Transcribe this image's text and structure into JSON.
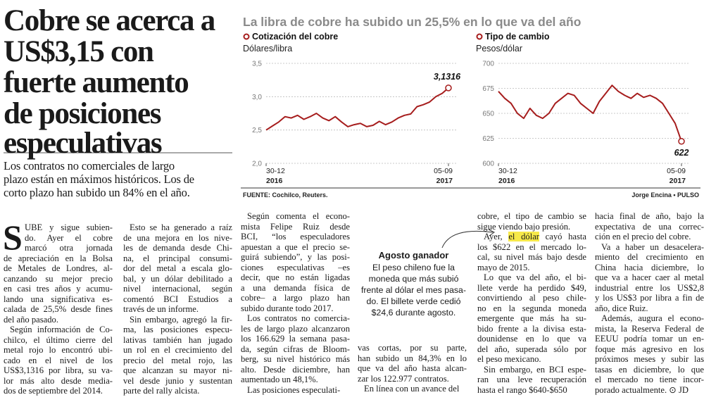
{
  "headline": {
    "lines": [
      "Cobre se acerca a",
      "US$3,15 con",
      "fuerte aumento",
      "de posiciones",
      "especulativas"
    ],
    "deck": [
      "Los contratos no comerciales de largo",
      "plazo están en máximos históricos. Los de",
      "corto plazo han subido un 84% en el año."
    ]
  },
  "infographic": {
    "title": "La libra de cobre ha subido un 25,5% en lo que va del año",
    "source": "FUENTE: Cochilco, Reuters.",
    "credit": "Jorge Encina • PULSO"
  },
  "chart_data": [
    {
      "type": "line",
      "title": "Cotización del cobre",
      "subtitle": "Dólares/libra",
      "color": "#a61d1d",
      "grid": true,
      "categories": [
        "30-12",
        null,
        null,
        null,
        null,
        null,
        null,
        null,
        null,
        null,
        null,
        null,
        null,
        null,
        null,
        null,
        null,
        null,
        null,
        null,
        null,
        null,
        null,
        null,
        null,
        null,
        null,
        null,
        null,
        "05-09"
      ],
      "years": [
        "2016",
        "2017"
      ],
      "values": [
        2.5,
        2.56,
        2.62,
        2.7,
        2.68,
        2.72,
        2.66,
        2.7,
        2.75,
        2.68,
        2.64,
        2.7,
        2.62,
        2.55,
        2.58,
        2.6,
        2.55,
        2.57,
        2.63,
        2.58,
        2.62,
        2.68,
        2.72,
        2.74,
        2.85,
        2.88,
        2.92,
        3.0,
        3.05,
        3.1316
      ],
      "value_labels": [
        null,
        null,
        null,
        null,
        null,
        null,
        null,
        null,
        null,
        null,
        null,
        null,
        null,
        null,
        null,
        null,
        null,
        null,
        null,
        null,
        null,
        null,
        null,
        null,
        null,
        null,
        null,
        null,
        null,
        "3,1316"
      ],
      "ylim": [
        2.0,
        3.5
      ],
      "yticks": [
        {
          "value": 2.0,
          "label": "2,0"
        },
        {
          "value": 2.5,
          "label": "2,5"
        },
        {
          "value": 3.0,
          "label": "3,0"
        },
        {
          "value": 3.5,
          "label": "3,5"
        }
      ]
    },
    {
      "type": "line",
      "title": "Tipo de cambio",
      "subtitle": "Pesos/dólar",
      "color": "#a61d1d",
      "grid": true,
      "categories": [
        "30-12",
        null,
        null,
        null,
        null,
        null,
        null,
        null,
        null,
        null,
        null,
        null,
        null,
        null,
        null,
        null,
        null,
        null,
        null,
        null,
        null,
        null,
        null,
        null,
        null,
        null,
        null,
        null,
        null,
        "05-09"
      ],
      "years": [
        "2016",
        "2017"
      ],
      "values": [
        672,
        665,
        660,
        650,
        645,
        655,
        648,
        645,
        650,
        660,
        665,
        670,
        668,
        660,
        655,
        650,
        662,
        670,
        678,
        672,
        668,
        665,
        670,
        666,
        668,
        665,
        660,
        650,
        640,
        622
      ],
      "ylim": [
        600,
        700
      ],
      "yticks": [
        600,
        625,
        650,
        675,
        700
      ]
    }
  ],
  "sidebar": {
    "title": "Agosto ganador",
    "lines": [
      "El peso chileno fue la",
      "moneda que más subió",
      "frente al dólar el mes pasa-",
      "do. El billete verde cedió",
      "$24,6 durante agosto."
    ]
  },
  "article": {
    "drop_cap": "S",
    "columns": [
      [
        [
          "UBE y sigue subien-",
          "do. Ayer el cobre",
          "marcó otra jornada",
          "de apreciación en la Bolsa",
          "de Metales de Londres, al-",
          "canzando su mejor precio",
          "en casi tres años y acumu-",
          "lando una significativa es-",
          "calada de 25,5% desde fines",
          "del año pasado."
        ],
        [
          "Según información de Co-",
          "chilco, el último cierre del",
          "metal rojo lo encontró ubi-",
          "cado en el nivel de los",
          "US$3,1316 por libra, su va-",
          "lor más alto desde media-",
          "dos de septiembre del 2014."
        ]
      ],
      [
        [
          "Esto se ha generado a raíz",
          "de una mejora en los nive-",
          "les de demanda desde Chi-",
          "na, el principal consumi-",
          "dor del metal a escala glo-",
          "bal, y un dólar debilitado a",
          "nivel internacional, según",
          "comentó BCI Estudios a",
          "través de un informe."
        ],
        [
          "Sin embargo, agregó la fir-",
          "ma, las posiciones especu-",
          "lativas también han jugado",
          "un rol en el crecimiento del",
          "precio del metal rojo, las",
          "que alcanzan su mayor ni-",
          "vel desde junio y sustentan",
          "parte del rally alcista."
        ]
      ],
      [
        [
          "Según comenta el econo-",
          "mista Felipe Ruiz desde",
          "BCI, “los especuladores",
          "apuestan a que el precio se-",
          "guirá subiendo”, y las posi-",
          "ciones especulativas –es",
          "decir, que no están ligadas",
          "a una demanda física de",
          "cobre– a largo plazo han",
          "subido durante todo 2017."
        ],
        [
          "Los contratos no comercia-",
          "les de largo plazo alcanzaron",
          "los 166.629 la semana pasa-",
          "da, según cifras de Bloom-",
          "berg, su nivel histórico más",
          "alto. Desde diciembre, han",
          "aumentado un 48,1%."
        ],
        [
          "Las posiciones especulati-"
        ]
      ],
      [
        [
          "vas cortas, por su parte,",
          "han subido un 84,3% en lo",
          "que va del año hasta alcan-",
          "zar los 122.977 contratos."
        ],
        [
          "En línea con un avance del"
        ]
      ],
      [
        [
          "cobre, el tipo de cambio se",
          "sigue viendo bajo presión."
        ],
        [
          [
            "Ayer, ",
            "el dólar",
            " cayó hasta"
          ],
          "los $622 en el mercado lo-",
          "cal, su nivel más bajo desde",
          "mayo de 2015."
        ],
        [
          "Lo que va del año, el bi-",
          "llete verde ha perdido $49,",
          "convirtiendo al peso chile-",
          "no en la segunda moneda",
          "emergente que más ha su-",
          "bido frente a la divisa esta-",
          "dounidense en lo que va",
          "del año, superada sólo por",
          "el peso mexicano."
        ],
        [
          "Sin embargo, en BCI espe-",
          "ran una leve recuperación",
          "hasta el rango $640-$650"
        ]
      ],
      [
        [
          "hacia final de año, bajo la",
          "expectativa de una correc-",
          "ción en el precio del cobre."
        ],
        [
          "Va a haber un desacelera-",
          "miento del crecimiento en",
          "China hacia diciembre, lo",
          "que va a hacer caer al metal",
          "industrial entre los US$2,8",
          "y los US$3 por libra a fin de",
          "año, dice Ruiz."
        ],
        [
          "Además, augura el econo-",
          "mista, la Reserva Federal de",
          "EEUU podría tomar un en-",
          "foque más agresivo en los",
          "próximos meses y subir las",
          "tasas en diciembre, lo que",
          "el mercado no tiene incor-",
          "porado actualmente. ⊙ JD"
        ]
      ]
    ]
  }
}
